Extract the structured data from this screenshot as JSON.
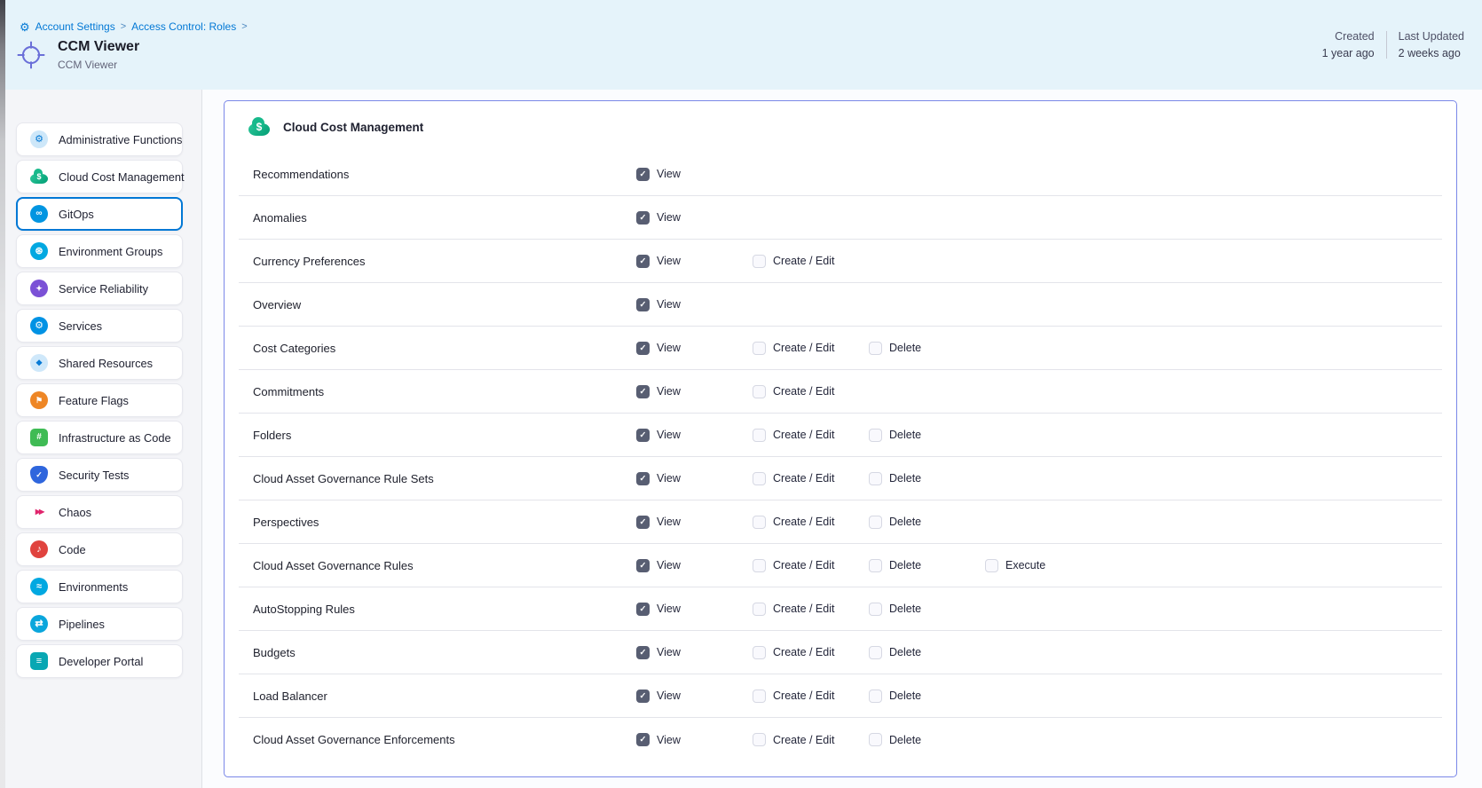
{
  "topbar": {
    "breadcrumb": {
      "items": [
        "Account Settings",
        "Access Control: Roles"
      ],
      "separator": ">"
    },
    "title": "CCM Viewer",
    "subtitle": "CCM Viewer",
    "created_label": "Created",
    "created_value": "1 year ago",
    "updated_label": "Last Updated",
    "updated_value": "2 weeks ago"
  },
  "sidebar": {
    "items": [
      {
        "label": "Administrative Functions",
        "icon": "admin",
        "selected": false
      },
      {
        "label": "Cloud Cost Management",
        "icon": "ccm",
        "selected": false
      },
      {
        "label": "GitOps",
        "icon": "gitops",
        "selected": true
      },
      {
        "label": "Environment Groups",
        "icon": "envgroups",
        "selected": false
      },
      {
        "label": "Service Reliability",
        "icon": "srm",
        "selected": false
      },
      {
        "label": "Services",
        "icon": "services",
        "selected": false
      },
      {
        "label": "Shared Resources",
        "icon": "shared",
        "selected": false
      },
      {
        "label": "Feature Flags",
        "icon": "ff",
        "selected": false
      },
      {
        "label": "Infrastructure as Code",
        "icon": "iac",
        "selected": false
      },
      {
        "label": "Security Tests",
        "icon": "sto",
        "selected": false
      },
      {
        "label": "Chaos",
        "icon": "chaos",
        "selected": false
      },
      {
        "label": "Code",
        "icon": "code",
        "selected": false
      },
      {
        "label": "Environments",
        "icon": "environments",
        "selected": false
      },
      {
        "label": "Pipelines",
        "icon": "pipelines",
        "selected": false
      },
      {
        "label": "Developer Portal",
        "icon": "devportal",
        "selected": false
      }
    ]
  },
  "icon_glyphs": {
    "breadcrumb_gear": "⚙",
    "check": "✓",
    "admin": "⚙",
    "ccm": "$",
    "gitops": "∞",
    "envgroups": "⊛",
    "srm": "✦",
    "services": "⚙",
    "shared": "❖",
    "ff": "⚑",
    "iac": "#",
    "sto": "✓",
    "chaos": "▶▶",
    "code": "♪",
    "environments": "≈",
    "pipelines": "⇄",
    "devportal": "≡"
  },
  "panel": {
    "title": "Cloud Cost Management",
    "rows": [
      {
        "resource": "Recommendations",
        "permissions": [
          {
            "label": "View",
            "checked": true
          }
        ]
      },
      {
        "resource": "Anomalies",
        "permissions": [
          {
            "label": "View",
            "checked": true
          }
        ]
      },
      {
        "resource": "Currency Preferences",
        "permissions": [
          {
            "label": "View",
            "checked": true
          },
          {
            "label": "Create / Edit",
            "checked": false
          }
        ]
      },
      {
        "resource": "Overview",
        "permissions": [
          {
            "label": "View",
            "checked": true
          }
        ]
      },
      {
        "resource": "Cost Categories",
        "permissions": [
          {
            "label": "View",
            "checked": true
          },
          {
            "label": "Create / Edit",
            "checked": false
          },
          {
            "label": "Delete",
            "checked": false
          }
        ]
      },
      {
        "resource": "Commitments",
        "permissions": [
          {
            "label": "View",
            "checked": true
          },
          {
            "label": "Create / Edit",
            "checked": false
          }
        ]
      },
      {
        "resource": "Folders",
        "permissions": [
          {
            "label": "View",
            "checked": true
          },
          {
            "label": "Create / Edit",
            "checked": false
          },
          {
            "label": "Delete",
            "checked": false
          }
        ]
      },
      {
        "resource": "Cloud Asset Governance Rule Sets",
        "permissions": [
          {
            "label": "View",
            "checked": true
          },
          {
            "label": "Create / Edit",
            "checked": false
          },
          {
            "label": "Delete",
            "checked": false
          }
        ]
      },
      {
        "resource": "Perspectives",
        "permissions": [
          {
            "label": "View",
            "checked": true
          },
          {
            "label": "Create / Edit",
            "checked": false
          },
          {
            "label": "Delete",
            "checked": false
          }
        ]
      },
      {
        "resource": "Cloud Asset Governance Rules",
        "permissions": [
          {
            "label": "View",
            "checked": true
          },
          {
            "label": "Create / Edit",
            "checked": false
          },
          {
            "label": "Delete",
            "checked": false
          },
          {
            "label": "Execute",
            "checked": false
          }
        ]
      },
      {
        "resource": "AutoStopping Rules",
        "permissions": [
          {
            "label": "View",
            "checked": true
          },
          {
            "label": "Create / Edit",
            "checked": false
          },
          {
            "label": "Delete",
            "checked": false
          }
        ]
      },
      {
        "resource": "Budgets",
        "permissions": [
          {
            "label": "View",
            "checked": true
          },
          {
            "label": "Create / Edit",
            "checked": false
          },
          {
            "label": "Delete",
            "checked": false
          }
        ]
      },
      {
        "resource": "Load Balancer",
        "permissions": [
          {
            "label": "View",
            "checked": true
          },
          {
            "label": "Create / Edit",
            "checked": false
          },
          {
            "label": "Delete",
            "checked": false
          }
        ]
      },
      {
        "resource": "Cloud Asset Governance Enforcements",
        "permissions": [
          {
            "label": "View",
            "checked": true
          },
          {
            "label": "Create / Edit",
            "checked": false
          },
          {
            "label": "Delete",
            "checked": false
          }
        ]
      }
    ]
  },
  "colors": {
    "accent": "#0278d5",
    "topbar_bg": "#e5f3fa",
    "panel_border": "#7b88e8",
    "checkbox_checked": "#585e72"
  }
}
